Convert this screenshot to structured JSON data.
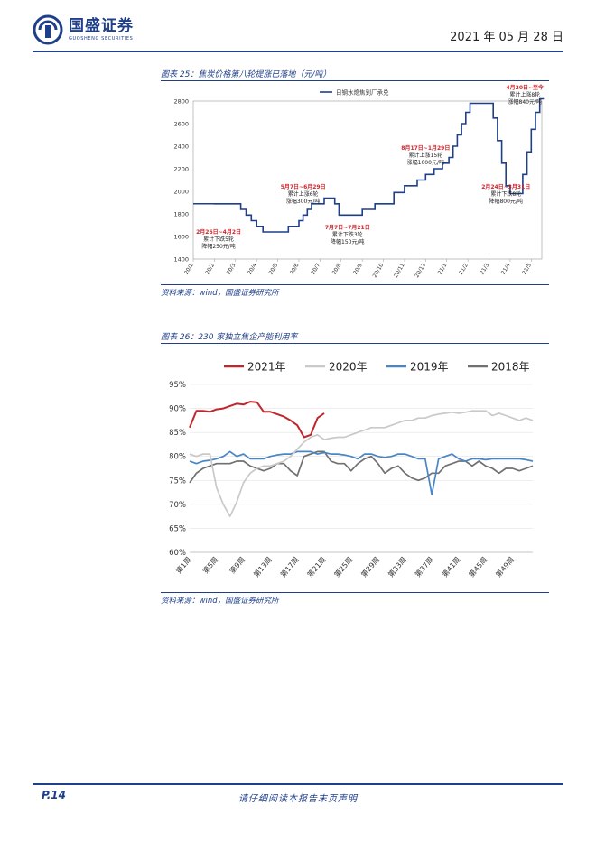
{
  "header": {
    "company_cn": "国盛证券",
    "company_en": "GUOSHENG SECURITIES",
    "date": "2021 年 05 月 28 日"
  },
  "figure25": {
    "caption": "图表 25：焦炭价格第八轮提涨已落地（元/吨）",
    "source": "资料来源：wind，国盛证券研究所"
  },
  "figure26": {
    "caption": "图表 26：230 家独立焦企产能利用率",
    "source": "资料来源：wind，国盛证券研究所"
  },
  "footer": {
    "page": "P.14",
    "disclaimer": "请仔细阅读本报告末页声明"
  },
  "chart_data": [
    {
      "type": "line",
      "legend": "日钢水熄焦到厂承兑",
      "legend_position": "top-center",
      "ylim": [
        1400,
        2800
      ],
      "yticks": [
        "1400",
        "1600",
        "1800",
        "2000",
        "2200",
        "2400",
        "2600",
        "2800"
      ],
      "xticks": [
        "20/1",
        "20/2",
        "20/3",
        "20/4",
        "20/5",
        "20/6",
        "20/7",
        "20/8",
        "20/9",
        "20/10",
        "20/11",
        "20/12",
        "21/1",
        "21/2",
        "21/3",
        "21/4",
        "21/5"
      ],
      "x": [
        0,
        1,
        2,
        2.25,
        2.5,
        2.75,
        3,
        3.3,
        3.6,
        4,
        4.5,
        5,
        5.2,
        5.4,
        5.6,
        5.8,
        6,
        6.2,
        6.4,
        6.7,
        6.9,
        7.1,
        7.3,
        7.5,
        8,
        8.3,
        8.6,
        9,
        9.5,
        10,
        10.3,
        10.6,
        11,
        11.4,
        11.8,
        12.1,
        12.3,
        12.5,
        12.7,
        12.9,
        13.1,
        13.5,
        14,
        14.2,
        14.4,
        14.6,
        14.8,
        15,
        15.4,
        15.6,
        15.8,
        16,
        16.2,
        16.4,
        16.6
      ],
      "values": [
        1890,
        1890,
        1890,
        1840,
        1790,
        1740,
        1690,
        1640,
        1640,
        1640,
        1690,
        1740,
        1790,
        1840,
        1890,
        1890,
        1890,
        1940,
        1940,
        1890,
        1790,
        1790,
        1790,
        1790,
        1840,
        1840,
        1890,
        1890,
        1990,
        2050,
        2050,
        2100,
        2150,
        2200,
        2250,
        2300,
        2400,
        2500,
        2600,
        2700,
        2780,
        2780,
        2780,
        2650,
        2450,
        2250,
        2050,
        1980,
        1980,
        2150,
        2350,
        2550,
        2700,
        2820,
        2820
      ],
      "color": "#1f3f8a",
      "annotations": [
        {
          "date": "2月26日~4月2日",
          "l1": "累计下跌5轮",
          "l2": "降幅250元/吨",
          "x": 1.2,
          "y": 1625
        },
        {
          "date": "5月7日~6月29日",
          "l1": "累计上涨6轮",
          "l2": "涨幅300元/吨",
          "x": 5.2,
          "y": 2025
        },
        {
          "date": "7月7日~7月21日",
          "l1": "累计下跌3轮",
          "l2": "降幅150元/吨",
          "x": 7.3,
          "y": 1665
        },
        {
          "date": "8月17日~1月29日",
          "l1": "累计上涨15轮",
          "l2": "涨幅1000元/吨",
          "x": 11.0,
          "y": 2370
        },
        {
          "date": "2月24日~3月31日",
          "l1": "累计下跌8轮",
          "l2": "降幅800元/吨",
          "x": 14.8,
          "y": 2025
        },
        {
          "date": "4月20日~至今",
          "l1": "累计上涨8轮",
          "l2": "涨幅840元/吨",
          "x": 15.7,
          "y": 2905
        }
      ]
    },
    {
      "type": "line",
      "ylim": [
        60,
        95
      ],
      "yticks": [
        "60%",
        "65%",
        "70%",
        "75%",
        "80%",
        "85%",
        "90%",
        "95%"
      ],
      "xticks": [
        "第1周",
        "第5周",
        "第9周",
        "第13周",
        "第17周",
        "第21周",
        "第25周",
        "第29周",
        "第33周",
        "第37周",
        "第41周",
        "第45周",
        "第49周"
      ],
      "x_count": 52,
      "legend_position": "top",
      "series": [
        {
          "name": "2021年",
          "color": "#c0272d",
          "values": [
            86.0,
            89.5,
            89.5,
            89.3,
            89.8,
            90.0,
            90.5,
            91.0,
            90.8,
            91.4,
            91.3,
            89.3,
            89.3,
            88.8,
            88.3,
            87.5,
            86.5,
            84.0,
            84.5,
            88.0,
            89.0
          ]
        },
        {
          "name": "2020年",
          "color": "#c9c9c9",
          "values": [
            80.5,
            80.0,
            80.5,
            80.5,
            73.5,
            70.0,
            67.5,
            70.5,
            74.5,
            76.5,
            77.5,
            78.0,
            78.0,
            78.5,
            79.0,
            80.0,
            81.5,
            83.0,
            84.0,
            84.5,
            83.5,
            83.8,
            84.0,
            84.0,
            84.5,
            85.0,
            85.5,
            86.0,
            86.0,
            86.0,
            86.5,
            87.0,
            87.5,
            87.5,
            88.0,
            88.0,
            88.5,
            88.8,
            89.0,
            89.2,
            89.0,
            89.2,
            89.5,
            89.5,
            89.5,
            88.5,
            89.0,
            88.5,
            88.0,
            87.5,
            88.0,
            87.5
          ]
        },
        {
          "name": "2019年",
          "color": "#4a86c5",
          "values": [
            79.0,
            78.5,
            79.0,
            79.2,
            79.5,
            80.0,
            81.0,
            80.0,
            80.5,
            79.5,
            79.5,
            79.5,
            80.0,
            80.3,
            80.5,
            80.5,
            81.0,
            81.0,
            81.0,
            80.5,
            80.8,
            80.5,
            80.5,
            80.3,
            80.0,
            79.5,
            80.5,
            80.5,
            80.0,
            79.8,
            80.0,
            80.5,
            80.5,
            80.0,
            79.5,
            79.5,
            72.0,
            79.5,
            80.0,
            80.5,
            79.5,
            79.0,
            79.5,
            79.5,
            79.3,
            79.5,
            79.5,
            79.5,
            79.5,
            79.5,
            79.3,
            79.0
          ]
        },
        {
          "name": "2018年",
          "color": "#707070",
          "values": [
            74.5,
            76.5,
            77.5,
            78.0,
            78.5,
            78.5,
            78.5,
            79.0,
            79.0,
            78.0,
            77.5,
            77.0,
            77.5,
            78.5,
            78.5,
            77.0,
            76.0,
            80.0,
            80.5,
            81.0,
            81.0,
            79.0,
            78.5,
            78.5,
            77.0,
            78.5,
            79.5,
            80.0,
            78.5,
            76.5,
            77.5,
            78.0,
            76.5,
            75.5,
            75.0,
            75.5,
            76.5,
            76.5,
            78.0,
            78.5,
            79.0,
            79.0,
            78.0,
            79.0,
            78.0,
            77.5,
            76.5,
            77.5,
            77.5,
            77.0,
            77.5,
            78.0
          ]
        }
      ]
    }
  ]
}
